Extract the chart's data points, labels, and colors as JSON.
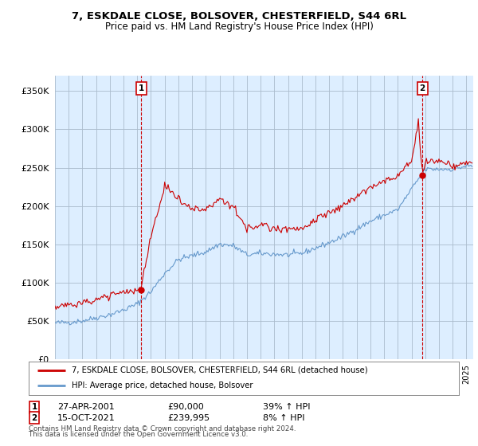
{
  "title": "7, ESKDALE CLOSE, BOLSOVER, CHESTERFIELD, S44 6RL",
  "subtitle": "Price paid vs. HM Land Registry's House Price Index (HPI)",
  "ylabel_ticks": [
    "£0",
    "£50K",
    "£100K",
    "£150K",
    "£200K",
    "£250K",
    "£300K",
    "£350K"
  ],
  "ytick_values": [
    0,
    50000,
    100000,
    150000,
    200000,
    250000,
    300000,
    350000
  ],
  "ylim": [
    0,
    370000
  ],
  "xlim_start": 1995.0,
  "xlim_end": 2025.5,
  "chart_bg": "#ddeeff",
  "background_color": "#ffffff",
  "grid_color": "#aabbcc",
  "sale_color": "#cc0000",
  "hpi_color": "#6699cc",
  "marker1_date": "27-APR-2001",
  "marker1_price": "£90,000",
  "marker1_hpi": "39% ↑ HPI",
  "marker1_x": 2001.3,
  "marker1_y": 90000,
  "marker2_date": "15-OCT-2021",
  "marker2_price": "£239,995",
  "marker2_hpi": "8% ↑ HPI",
  "marker2_x": 2021.79,
  "marker2_y": 239995,
  "legend_line1": "7, ESKDALE CLOSE, BOLSOVER, CHESTERFIELD, S44 6RL (detached house)",
  "legend_line2": "HPI: Average price, detached house, Bolsover",
  "footer1": "Contains HM Land Registry data © Crown copyright and database right 2024.",
  "footer2": "This data is licensed under the Open Government Licence v3.0."
}
